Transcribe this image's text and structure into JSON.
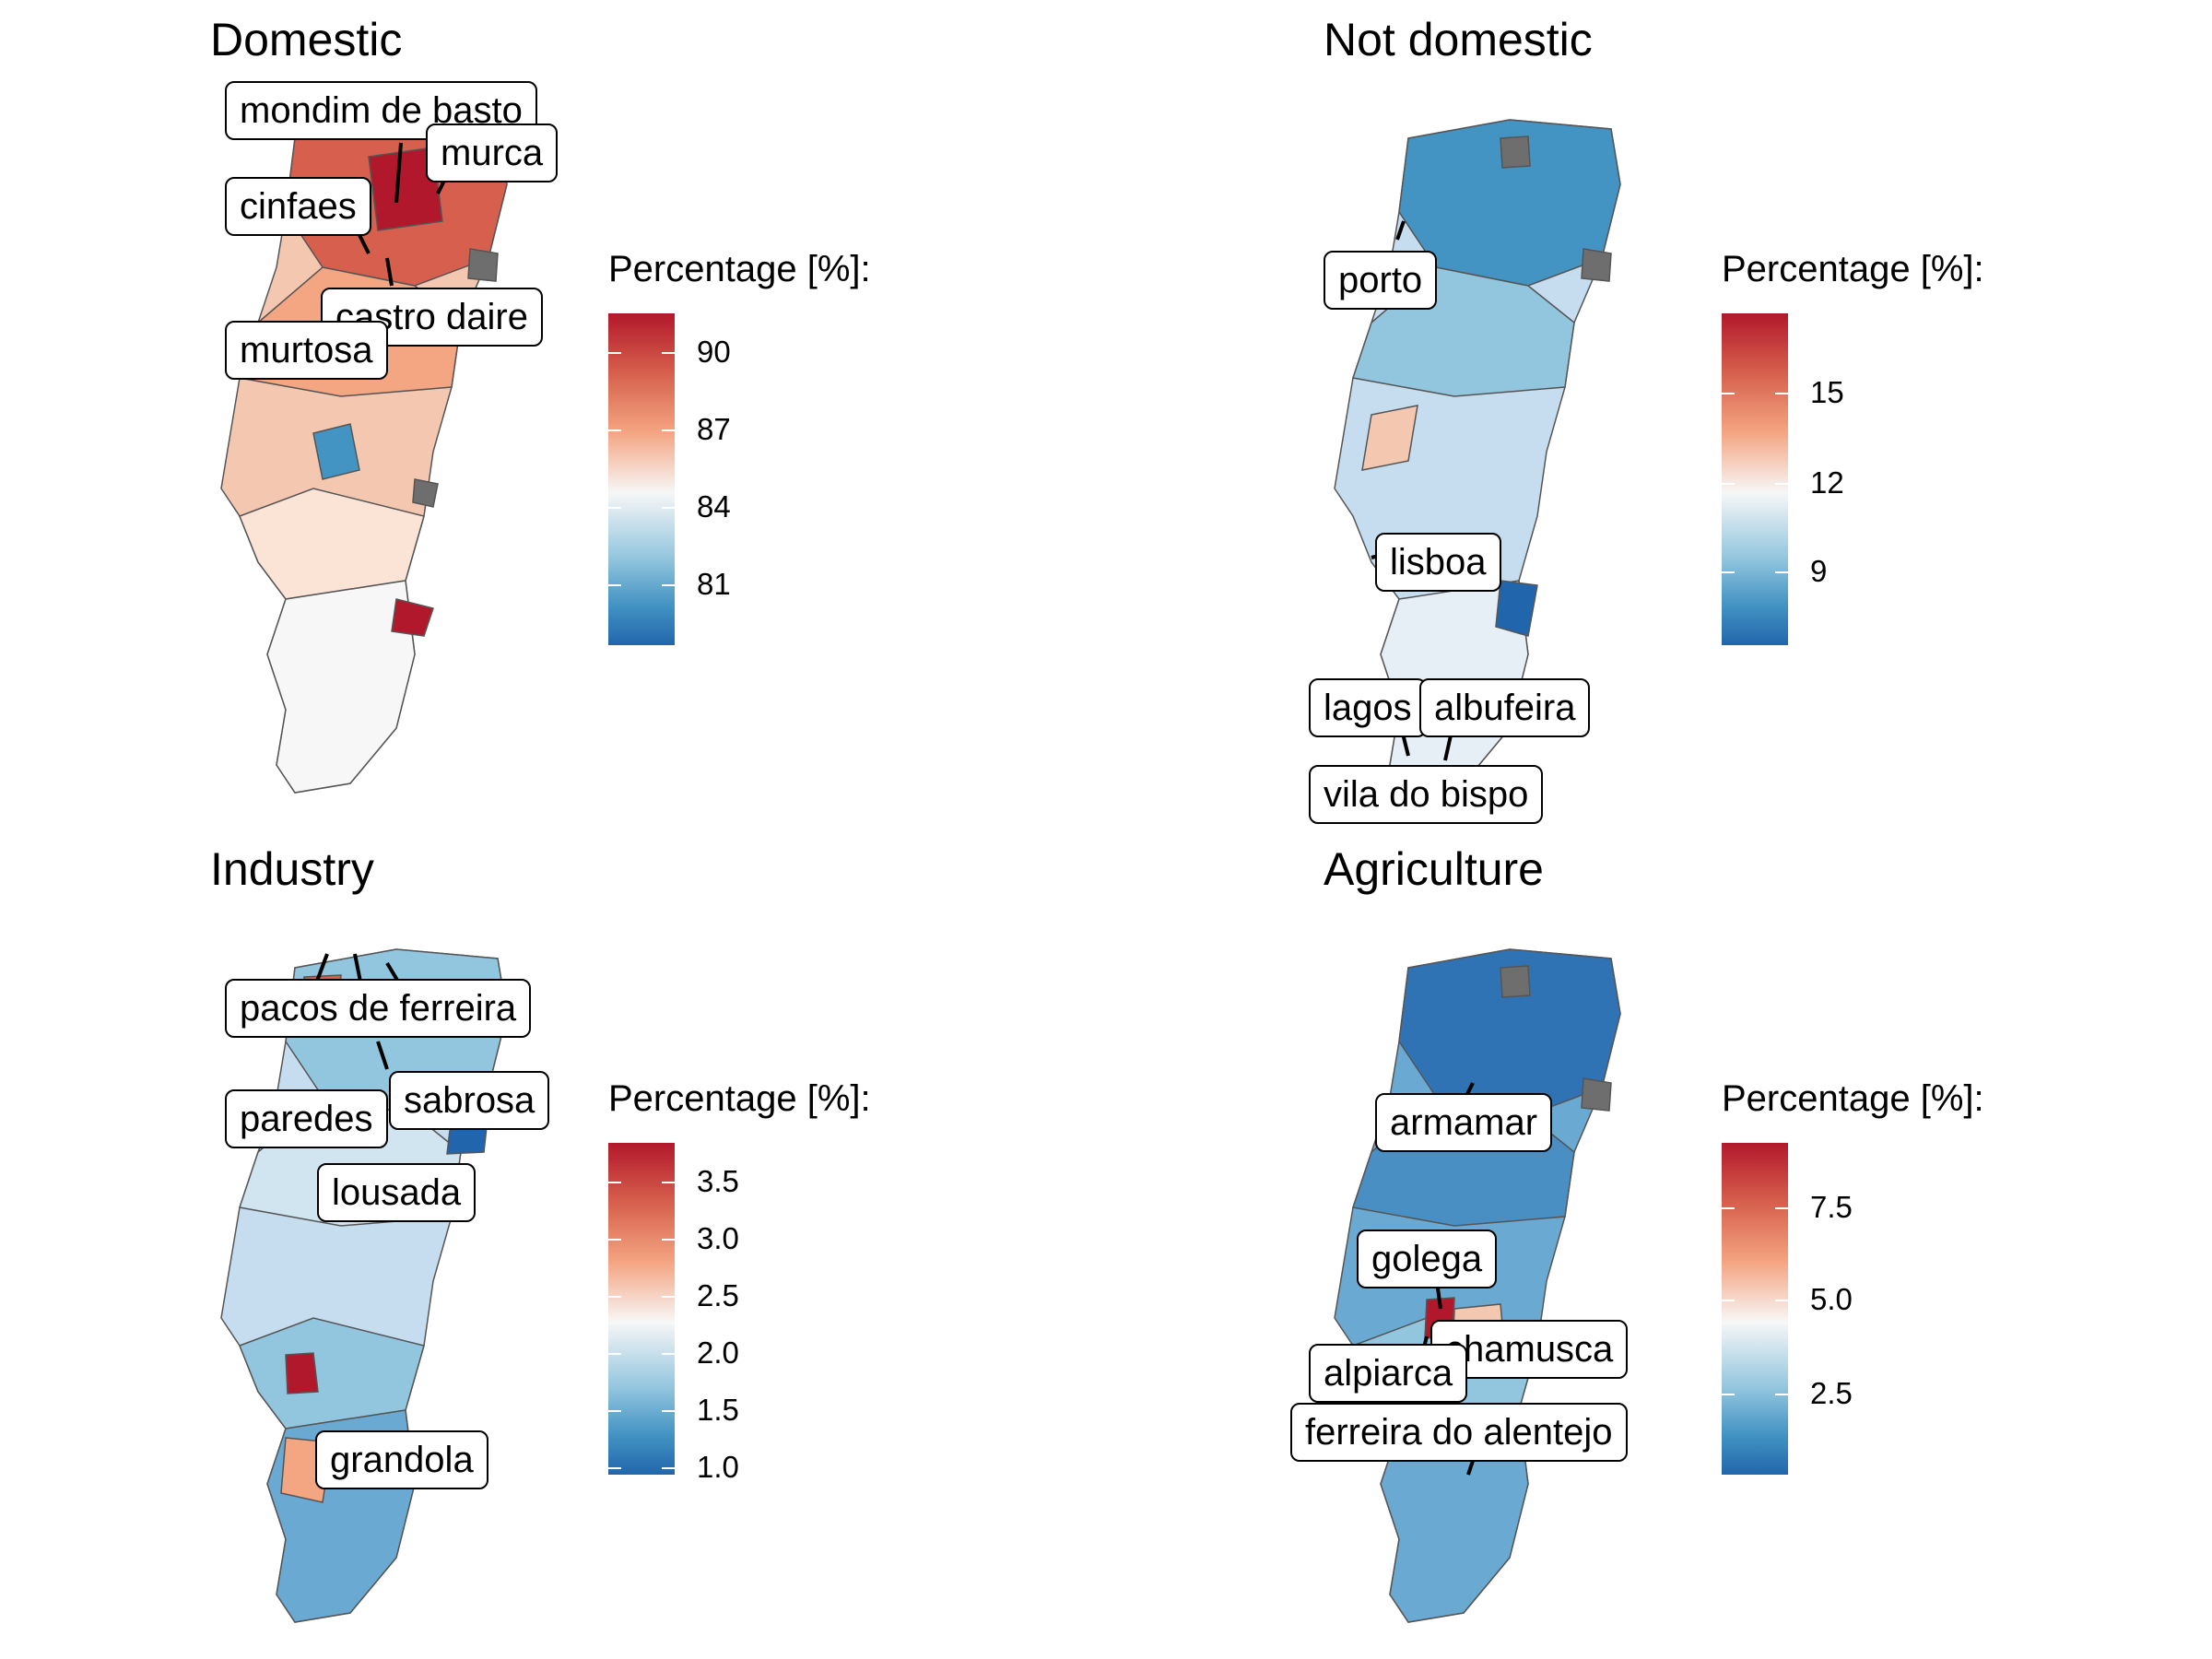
{
  "panels": [
    {
      "title": "Domestic",
      "legend_title": "Percentage [%]:",
      "ticks": [
        "90",
        "87",
        "84",
        "81"
      ],
      "labels": [
        "mondim de basto",
        "murca",
        "cinfaes",
        "castro daire",
        "murtosa"
      ],
      "colors": {
        "high": "#b2182b",
        "mid": "#f7f7f7",
        "low": "#2166ac",
        "missing": "#6e6e6e"
      }
    },
    {
      "title": "Not domestic",
      "legend_title": "Percentage [%]:",
      "ticks": [
        "15",
        "12",
        "9"
      ],
      "labels": [
        "porto",
        "lisboa",
        "lagos",
        "albufeira",
        "vila do bispo"
      ],
      "colors": {
        "high": "#b2182b",
        "mid": "#f7f7f7",
        "low": "#2166ac",
        "missing": "#6e6e6e"
      }
    },
    {
      "title": "Industry",
      "legend_title": "Percentage [%]:",
      "ticks": [
        "3.5",
        "3.0",
        "2.5",
        "2.0",
        "1.5",
        "1.0"
      ],
      "labels": [
        "pacos de ferreira",
        "paredes",
        "sabrosa",
        "lousada",
        "grandola"
      ],
      "colors": {
        "high": "#b2182b",
        "mid": "#f7f7f7",
        "low": "#2166ac",
        "missing": "#6e6e6e"
      }
    },
    {
      "title": "Agriculture",
      "legend_title": "Percentage [%]:",
      "ticks": [
        "7.5",
        "5.0",
        "2.5"
      ],
      "labels": [
        "armamar",
        "golega",
        "chamusca",
        "alpiarca",
        "ferreira do alentejo"
      ],
      "colors": {
        "high": "#b2182b",
        "mid": "#f7f7f7",
        "low": "#2166ac",
        "missing": "#6e6e6e"
      }
    }
  ]
}
